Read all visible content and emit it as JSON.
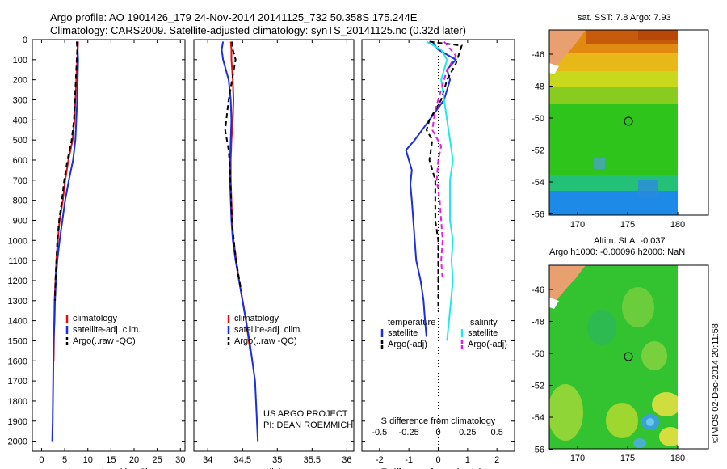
{
  "header": {
    "line1": "Argo profile: AO 1901426_179 24-Nov-2014 20141125_732 50.358S 175.244E",
    "line2": "Climatology: CARS2009. Satellite-adjusted climatology: synTS_20141125.nc (0.32d later)"
  },
  "colors": {
    "red": "#dd1111",
    "blue": "#1a2ee0",
    "black": "#000000",
    "cyan": "#22e8e8",
    "magenta": "#e020e0"
  },
  "chart_data": [
    {
      "type": "line",
      "name_key": "temperature",
      "xlabel": "temperature (deg C)",
      "ylabel": "",
      "xlim": [
        -2,
        31
      ],
      "ylim": [
        2050,
        0
      ],
      "xticks": [
        0,
        5,
        10,
        15,
        20,
        25,
        30
      ],
      "xticklabels": [
        "0",
        "5",
        "10",
        "15",
        "20",
        "25",
        "30"
      ],
      "yticks": [
        0,
        100,
        200,
        300,
        400,
        500,
        600,
        700,
        800,
        900,
        1000,
        1100,
        1200,
        1300,
        1400,
        1500,
        1600,
        1700,
        1800,
        1900,
        2000
      ],
      "yticklabels": [
        "0",
        "100",
        "200",
        "300",
        "400",
        "500",
        "600",
        "700",
        "800",
        "900",
        "1000",
        "1100",
        "1200",
        "1300",
        "1400",
        "1500",
        "1600",
        "1700",
        "1800",
        "1900",
        "2000"
      ],
      "legend": {
        "position": "lower-center",
        "entries": [
          "climatology",
          "satellite-adj. clim.",
          "Argo(..raw -QC)"
        ]
      },
      "series": [
        {
          "name": "climatology",
          "color": "red",
          "dash": false,
          "x": [
            7.9,
            7.8,
            7.7,
            7.5,
            7.3,
            7.1,
            6.7,
            5.8,
            5.1,
            4.6,
            3.9,
            3.5,
            3.2,
            3.0,
            2.8,
            2.6
          ],
          "y": [
            10,
            50,
            100,
            200,
            300,
            400,
            500,
            600,
            700,
            800,
            900,
            1000,
            1100,
            1200,
            1300,
            1600
          ]
        },
        {
          "name": "satellite-adj. clim.",
          "color": "blue",
          "dash": false,
          "x": [
            7.8,
            7.8,
            7.9,
            7.8,
            7.7,
            7.5,
            7.3,
            6.8,
            5.9,
            5.1,
            4.5,
            3.9,
            3.4,
            3.1,
            2.9,
            2.8,
            2.6,
            2.5,
            2.4,
            2.3
          ],
          "y": [
            10,
            50,
            100,
            200,
            300,
            400,
            500,
            600,
            700,
            800,
            900,
            1000,
            1100,
            1200,
            1300,
            1400,
            1500,
            1700,
            1900,
            2000
          ]
        },
        {
          "name": "Argo(..raw -QC)",
          "color": "black",
          "dash": true,
          "x": [
            7.6,
            7.7,
            7.6,
            7.4,
            7.2,
            7.0,
            6.5,
            5.6,
            4.9,
            4.4,
            3.8,
            3.4,
            3.2,
            3.0,
            2.9
          ],
          "y": [
            10,
            50,
            100,
            200,
            300,
            400,
            500,
            600,
            700,
            800,
            900,
            1000,
            1100,
            1200,
            1300
          ]
        }
      ]
    },
    {
      "type": "line",
      "name_key": "salinity",
      "xlabel": "salinity",
      "ylabel": "",
      "xlim": [
        33.8,
        36.1
      ],
      "ylim": [
        2050,
        0
      ],
      "xticks": [
        34,
        34.5,
        35,
        35.5,
        36
      ],
      "xticklabels": [
        "34",
        "34.5",
        "35",
        "35.5",
        "36"
      ],
      "legend": {
        "position": "lower-center",
        "entries": [
          "climatology",
          "satellite-adj. clim.",
          "Argo(..raw -QC)"
        ]
      },
      "annotations": [
        "US ARGO PROJECT",
        "PI: DEAN ROEMMICH"
      ],
      "series": [
        {
          "name": "climatology",
          "color": "red",
          "dash": false,
          "x": [
            34.33,
            34.34,
            34.34,
            34.36,
            34.37,
            34.36,
            34.34,
            34.33,
            34.33,
            34.34,
            34.35,
            34.37,
            34.41,
            34.45,
            34.5,
            34.55,
            34.61
          ],
          "y": [
            10,
            50,
            100,
            200,
            300,
            400,
            500,
            600,
            700,
            800,
            900,
            1000,
            1100,
            1200,
            1300,
            1400,
            1550
          ]
        },
        {
          "name": "satellite-adj. clim.",
          "color": "blue",
          "dash": false,
          "x": [
            34.22,
            34.2,
            34.22,
            34.3,
            34.33,
            34.34,
            34.33,
            34.32,
            34.32,
            34.33,
            34.34,
            34.36,
            34.4,
            34.45,
            34.5,
            34.55,
            34.6,
            34.64,
            34.68,
            34.7,
            34.72
          ],
          "y": [
            10,
            50,
            100,
            200,
            300,
            400,
            500,
            600,
            700,
            800,
            900,
            1000,
            1100,
            1200,
            1300,
            1400,
            1500,
            1600,
            1700,
            1850,
            2000
          ]
        },
        {
          "name": "Argo(..raw -QC)",
          "color": "black",
          "dash": true,
          "x": [
            34.35,
            34.36,
            34.4,
            34.35,
            34.3,
            34.25,
            34.3,
            34.32,
            34.33,
            34.34,
            34.36,
            34.39,
            34.43,
            34.48
          ],
          "y": [
            10,
            50,
            100,
            200,
            300,
            450,
            550,
            650,
            750,
            850,
            950,
            1050,
            1150,
            1250
          ]
        }
      ]
    },
    {
      "type": "line",
      "name_key": "difference",
      "xlabel": "T difference from climatology",
      "xlabel_top": "S difference from climatology",
      "xlim": [
        -2.6,
        2.6
      ],
      "ylim": [
        2050,
        0
      ],
      "xticks": [
        -2,
        -1,
        0,
        1,
        2
      ],
      "xticklabels": [
        "-2",
        "-1",
        "0",
        "1",
        "2"
      ],
      "sticks_top": [
        -0.5,
        -0.25,
        0,
        0.25,
        0.5
      ],
      "sticklabels_top": [
        "-0.5",
        "-0.25",
        "0",
        "0.25",
        "0.5"
      ],
      "legend": {
        "position": "lower",
        "entries": [
          "temperature",
          "satellite",
          "Argo(-adj)",
          "salinity",
          "satellite",
          "Argo(-adj)"
        ]
      },
      "series": [
        {
          "name": "satellite",
          "group": "temperature",
          "color": "blue",
          "dash": false,
          "x": [
            -0.2,
            0,
            0.6,
            0.3,
            0.4,
            0.2,
            -0.4,
            -0.8,
            -1.1,
            -0.9,
            -0.95,
            -0.9,
            -0.85,
            -0.8,
            -0.75,
            -0.6,
            -0.5,
            -0.45,
            -0.4
          ],
          "y": [
            10,
            50,
            100,
            150,
            200,
            300,
            420,
            500,
            550,
            650,
            720,
            800,
            900,
            1000,
            1100,
            1200,
            1300,
            1400,
            1480
          ]
        },
        {
          "name": "Argo(-adj)",
          "group": "temperature",
          "color": "black",
          "dash": true,
          "x": [
            -0.3,
            0.8,
            0.6,
            0.3,
            0.1,
            -0.3,
            -0.4,
            -0.2,
            -0.3,
            -0.1,
            -0.1,
            -0.1,
            0,
            0,
            0
          ],
          "y": [
            10,
            30,
            120,
            200,
            300,
            400,
            450,
            500,
            600,
            700,
            800,
            900,
            1000,
            1200,
            1350
          ]
        },
        {
          "name": "satellite",
          "group": "salinity",
          "color": "cyan",
          "dash": false,
          "x": [
            -0.4,
            0.1,
            0.3,
            0.1,
            0.2,
            0.3,
            0.4,
            0.5,
            0.4,
            0.4,
            0.4,
            0.5,
            0.45,
            0.5,
            0.4,
            0.3
          ],
          "y": [
            10,
            50,
            100,
            200,
            300,
            400,
            500,
            600,
            700,
            800,
            900,
            1000,
            1100,
            1200,
            1350,
            1500
          ]
        },
        {
          "name": "Argo(-adj)",
          "group": "salinity",
          "color": "magenta",
          "dash": true,
          "x": [
            0.2,
            0.6,
            0.3,
            0.1,
            -0.1,
            -0.2,
            0.1,
            0.0,
            -0.05,
            0.05,
            0.1,
            0.15,
            0.1,
            0.15
          ],
          "y": [
            10,
            80,
            150,
            250,
            350,
            450,
            530,
            600,
            700,
            800,
            900,
            1000,
            1100,
            1200
          ]
        }
      ]
    }
  ],
  "maps": {
    "top": {
      "title": "sat. SST: 7.8 Argo: 7.93",
      "xticklabels": [
        "170",
        "175",
        "180"
      ],
      "yticklabels": [
        "-46",
        "-48",
        "-50",
        "-52",
        "-54",
        "-56"
      ]
    },
    "bottom": {
      "title_line1": "Altim. SLA: -0.037",
      "title_line2": "Argo h1000: -0.00096 h2000: NaN",
      "xticklabels": [
        "170",
        "175",
        "180"
      ],
      "yticklabels": [
        "-46",
        "-48",
        "-50",
        "-52",
        "-54",
        "-56"
      ]
    }
  },
  "footer": {
    "credit": "©IMOS 02-Dec-2014 20:11:58"
  }
}
